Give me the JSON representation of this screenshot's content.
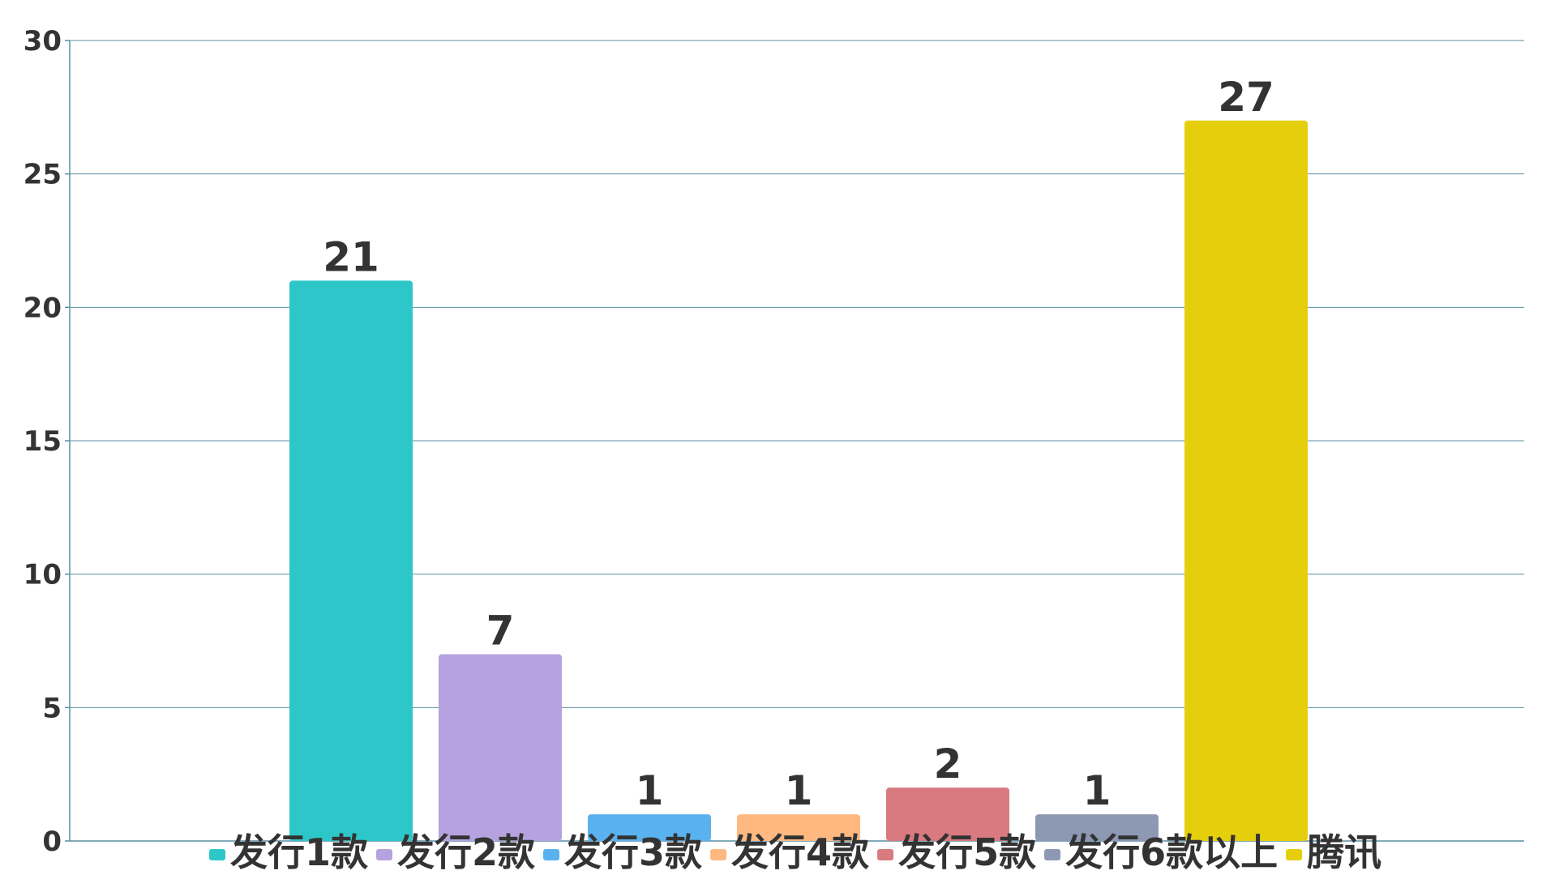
{
  "chart_data": {
    "type": "bar",
    "categories": [
      "发行1款",
      "发行2款",
      "发行3款",
      "发行4款",
      "发行5款",
      "发行6款以上",
      "腾讯"
    ],
    "values": [
      21,
      7,
      1,
      1,
      2,
      1,
      27
    ],
    "colors": [
      "#2ec7c9",
      "#b6a2de",
      "#5ab1ef",
      "#ffb980",
      "#d87a80",
      "#8d98b3",
      "#e5cf0d"
    ],
    "ylim": [
      0,
      30
    ],
    "yticks": [
      0,
      5,
      10,
      15,
      20,
      25,
      30
    ],
    "grid": true,
    "legend": "bottom",
    "title": "",
    "xlabel": "",
    "ylabel": ""
  }
}
